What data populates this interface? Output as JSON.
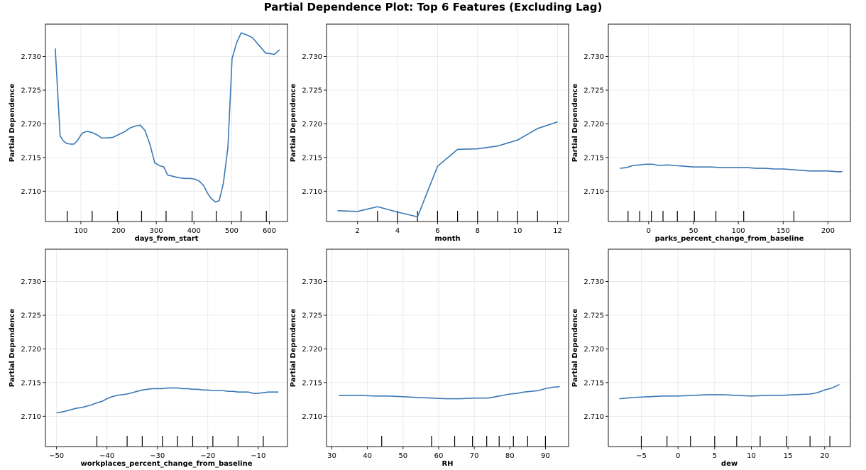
{
  "title": "Partial Dependence Plot: Top 6 Features (Excluding Lag)",
  "colors": {
    "line": "#3a78b5",
    "grid": "#e6e6e6",
    "axis": "#000000"
  },
  "chart_data": [
    {
      "type": "line",
      "xlabel": "days_from_start",
      "ylabel": "Partial Dependence",
      "grid": true,
      "xlim": [
        6,
        648
      ],
      "ylim": [
        2.7055,
        2.7348
      ],
      "xticks": [
        100,
        200,
        300,
        400,
        500,
        600
      ],
      "xtick_labels": [
        "100",
        "200",
        "300",
        "400",
        "500",
        "600"
      ],
      "yticks": [
        2.71,
        2.715,
        2.72,
        2.725,
        2.73
      ],
      "ytick_labels": [
        "2.710",
        "2.715",
        "2.720",
        "2.725",
        "2.730"
      ],
      "deciles": [
        64,
        130,
        197,
        261,
        326,
        395,
        459,
        525,
        592
      ],
      "x": [
        32,
        45,
        53,
        62,
        72,
        82,
        92,
        103,
        116,
        130,
        145,
        155,
        170,
        185,
        200,
        215,
        231,
        246,
        258,
        270,
        283,
        296,
        308,
        320,
        330,
        345,
        360,
        375,
        390,
        402,
        414,
        426,
        436,
        446,
        457,
        467,
        478,
        490,
        501,
        513,
        525,
        540,
        555,
        567,
        578,
        590,
        605,
        613,
        627
      ],
      "y": [
        2.7312,
        2.7182,
        2.7175,
        2.7171,
        2.717,
        2.717,
        2.7176,
        2.7186,
        2.7189,
        2.7187,
        2.7183,
        2.7179,
        2.7179,
        2.718,
        2.7184,
        2.7188,
        2.7194,
        2.7197,
        2.7198,
        2.719,
        2.717,
        2.7142,
        2.7138,
        2.7136,
        2.7124,
        2.7122,
        2.712,
        2.7119,
        2.7119,
        2.7118,
        2.7115,
        2.7108,
        2.7097,
        2.7089,
        2.7084,
        2.7086,
        2.7112,
        2.7165,
        2.7297,
        2.732,
        2.7335,
        2.7332,
        2.7328,
        2.732,
        2.7313,
        2.7305,
        2.7304,
        2.7303,
        2.731
      ]
    },
    {
      "type": "line",
      "xlabel": "month",
      "ylabel": "Partial Dependence",
      "grid": true,
      "xlim": [
        0.45,
        12.55
      ],
      "ylim": [
        2.7055,
        2.7348
      ],
      "xticks": [
        2,
        4,
        6,
        8,
        10,
        12
      ],
      "xtick_labels": [
        "2",
        "4",
        "6",
        "8",
        "10",
        "12"
      ],
      "yticks": [
        2.71,
        2.715,
        2.72,
        2.725,
        2.73
      ],
      "ytick_labels": [
        "2.710",
        "2.715",
        "2.720",
        "2.725",
        "2.730"
      ],
      "deciles": [
        3,
        4,
        5,
        6,
        7,
        8,
        9,
        10,
        11
      ],
      "x": [
        1,
        2,
        3,
        4,
        5,
        6,
        7,
        8,
        9,
        10,
        11,
        12
      ],
      "y": [
        2.7071,
        2.707,
        2.7077,
        2.7069,
        2.7062,
        2.7137,
        2.7162,
        2.7163,
        2.7167,
        2.7176,
        2.7193,
        2.7203
      ]
    },
    {
      "type": "line",
      "xlabel": "parks_percent_change_from_baseline",
      "ylabel": "Partial Dependence",
      "grid": true,
      "xlim": [
        -45,
        225
      ],
      "ylim": [
        2.7055,
        2.7348
      ],
      "xticks": [
        0,
        50,
        100,
        150,
        200
      ],
      "xtick_labels": [
        "0",
        "50",
        "100",
        "150",
        "200"
      ],
      "yticks": [
        2.71,
        2.715,
        2.72,
        2.725,
        2.73
      ],
      "ytick_labels": [
        "2.710",
        "2.715",
        "2.720",
        "2.725",
        "2.730"
      ],
      "deciles": [
        -23,
        -10,
        3,
        16,
        32,
        51,
        75,
        106,
        162
      ],
      "x": [
        -32,
        -25,
        -18,
        -10,
        -3,
        5,
        12,
        20,
        30,
        40,
        50,
        60,
        70,
        80,
        90,
        100,
        110,
        120,
        130,
        140,
        150,
        160,
        170,
        180,
        190,
        200,
        210,
        216
      ],
      "y": [
        2.7134,
        2.7135,
        2.7138,
        2.7139,
        2.714,
        2.714,
        2.7138,
        2.7139,
        2.7138,
        2.7137,
        2.7136,
        2.7136,
        2.7136,
        2.7135,
        2.7135,
        2.7135,
        2.7135,
        2.7134,
        2.7134,
        2.7133,
        2.7133,
        2.7132,
        2.7131,
        2.713,
        2.713,
        2.713,
        2.7129,
        2.7129
      ]
    },
    {
      "type": "line",
      "xlabel": "workplaces_percent_change_from_baseline",
      "ylabel": "Partial Dependence",
      "grid": true,
      "xlim": [
        -52.2,
        -4.2
      ],
      "ylim": [
        2.7055,
        2.7348
      ],
      "xticks": [
        -50,
        -40,
        -30,
        -20,
        -10
      ],
      "xtick_labels": [
        "−50",
        "−40",
        "−30",
        "−20",
        "−10"
      ],
      "yticks": [
        2.71,
        2.715,
        2.72,
        2.725,
        2.73
      ],
      "ytick_labels": [
        "2.710",
        "2.715",
        "2.720",
        "2.725",
        "2.730"
      ],
      "deciles": [
        -42,
        -36,
        -33,
        -29,
        -26,
        -23,
        -19,
        -14,
        -9
      ],
      "x": [
        -50,
        -48.5,
        -47,
        -46,
        -45,
        -44,
        -43,
        -42,
        -41,
        -40,
        -39,
        -38,
        -37,
        -36,
        -35,
        -34,
        -33,
        -32,
        -31,
        -30,
        -29,
        -28,
        -27,
        -26,
        -25,
        -24,
        -23,
        -22,
        -21,
        -20,
        -19,
        -18,
        -17,
        -16,
        -15,
        -14,
        -13,
        -12,
        -11,
        -10,
        -9,
        -8,
        -7,
        -6
      ],
      "y": [
        2.7105,
        2.7107,
        2.711,
        2.7112,
        2.7113,
        2.7115,
        2.7117,
        2.712,
        2.7122,
        2.7126,
        2.7129,
        2.7131,
        2.7132,
        2.7133,
        2.7135,
        2.7137,
        2.7139,
        2.714,
        2.7141,
        2.7141,
        2.7141,
        2.7142,
        2.7142,
        2.7142,
        2.7141,
        2.7141,
        2.714,
        2.714,
        2.7139,
        2.7139,
        2.7138,
        2.7138,
        2.7138,
        2.7137,
        2.7137,
        2.7136,
        2.7136,
        2.7136,
        2.7134,
        2.7134,
        2.7135,
        2.7136,
        2.7136,
        2.7136
      ]
    },
    {
      "type": "line",
      "xlabel": "RH",
      "ylabel": "Partial Dependence",
      "grid": true,
      "xlim": [
        28.5,
        96.5
      ],
      "ylim": [
        2.7055,
        2.7348
      ],
      "xticks": [
        30,
        40,
        50,
        60,
        70,
        80,
        90
      ],
      "xtick_labels": [
        "30",
        "40",
        "50",
        "60",
        "70",
        "80",
        "90"
      ],
      "yticks": [
        2.71,
        2.715,
        2.72,
        2.725,
        2.73
      ],
      "ytick_labels": [
        "2.710",
        "2.715",
        "2.720",
        "2.725",
        "2.730"
      ],
      "deciles": [
        44,
        58,
        64.5,
        69.5,
        73.5,
        77,
        81,
        85,
        90
      ],
      "x": [
        32,
        35,
        38,
        42,
        46,
        50,
        54,
        58,
        62,
        66,
        70,
        74,
        76,
        78,
        80,
        82,
        84,
        86,
        88,
        90,
        92,
        94
      ],
      "y": [
        2.7131,
        2.7131,
        2.7131,
        2.713,
        2.713,
        2.7129,
        2.7128,
        2.7127,
        2.7126,
        2.7126,
        2.7127,
        2.7127,
        2.7129,
        2.7131,
        2.7133,
        2.7134,
        2.7136,
        2.7137,
        2.7138,
        2.7141,
        2.7143,
        2.7144
      ]
    },
    {
      "type": "line",
      "xlabel": "dew",
      "ylabel": "Partial Dependence",
      "grid": true,
      "xlim": [
        -9.5,
        23.5
      ],
      "ylim": [
        2.7055,
        2.7348
      ],
      "xticks": [
        -5,
        0,
        5,
        10,
        15,
        20
      ],
      "xtick_labels": [
        "−5",
        "0",
        "5",
        "10",
        "15",
        "20"
      ],
      "yticks": [
        2.71,
        2.715,
        2.72,
        2.725,
        2.73
      ],
      "ytick_labels": [
        "2.710",
        "2.715",
        "2.720",
        "2.725",
        "2.730"
      ],
      "deciles": [
        -5,
        -1.5,
        1.7,
        5,
        8,
        11.2,
        14.8,
        18,
        20.7
      ],
      "x": [
        -8,
        -6,
        -4,
        -2,
        0,
        2,
        4,
        6,
        8,
        10,
        12,
        14,
        16,
        18,
        19,
        20,
        21,
        22
      ],
      "y": [
        2.7126,
        2.7128,
        2.7129,
        2.713,
        2.713,
        2.7131,
        2.7132,
        2.7132,
        2.7131,
        2.713,
        2.7131,
        2.7131,
        2.7132,
        2.7133,
        2.7135,
        2.7139,
        2.7142,
        2.7147
      ]
    }
  ]
}
